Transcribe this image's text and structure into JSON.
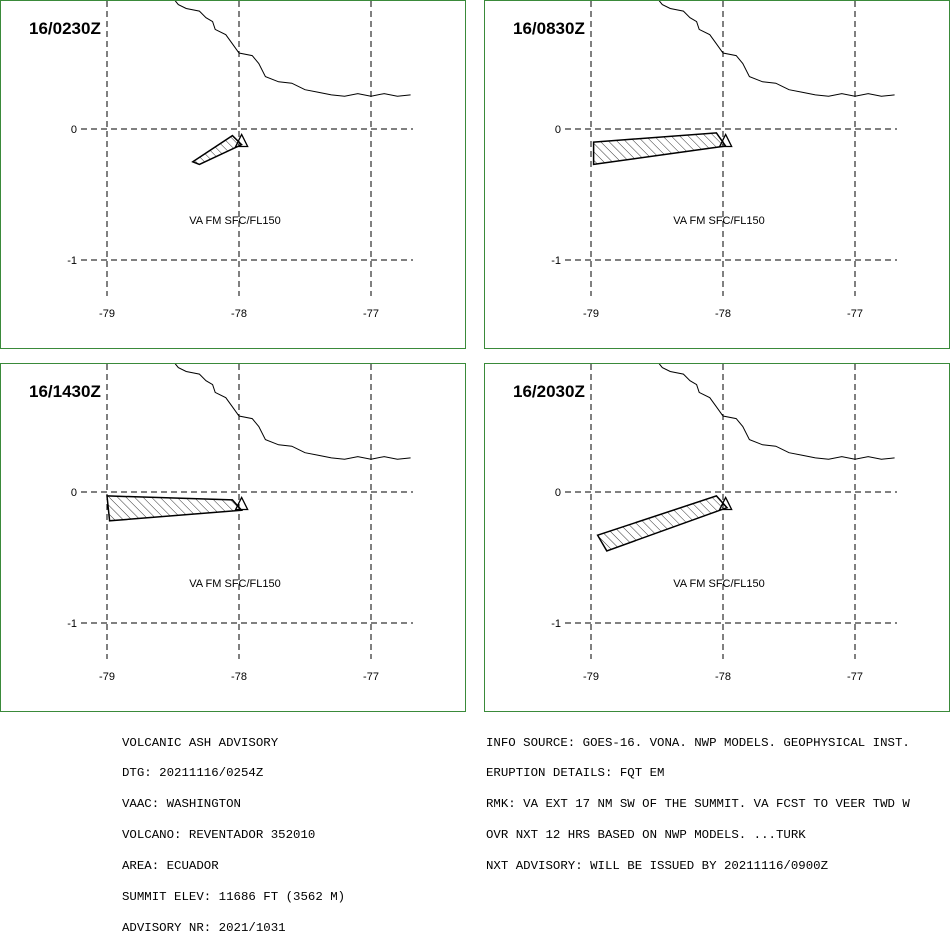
{
  "panels": [
    {
      "id": "p1",
      "time_label": "16/0230Z",
      "va_label": "VA FM SFC/FL150",
      "lon_labels": [
        "-79",
        "-78",
        "-77"
      ],
      "lat_labels": [
        "0",
        "-1"
      ],
      "ash_polygon": [
        [
          -78.35,
          -0.25
        ],
        [
          -78.05,
          -0.05
        ],
        [
          -77.98,
          -0.12
        ],
        [
          -78.3,
          -0.27
        ]
      ]
    },
    {
      "id": "p2",
      "time_label": "16/0830Z",
      "va_label": "VA FM SFC/FL150",
      "lon_labels": [
        "-79",
        "-78",
        "-77"
      ],
      "lat_labels": [
        "0",
        "-1"
      ],
      "ash_polygon": [
        [
          -78.98,
          -0.1
        ],
        [
          -78.05,
          -0.03
        ],
        [
          -77.98,
          -0.13
        ],
        [
          -78.98,
          -0.27
        ]
      ]
    },
    {
      "id": "p3",
      "time_label": "16/1430Z",
      "va_label": "VA FM SFC/FL150",
      "lon_labels": [
        "-79",
        "-78",
        "-77"
      ],
      "lat_labels": [
        "0",
        "-1"
      ],
      "ash_polygon": [
        [
          -79.0,
          -0.03
        ],
        [
          -78.05,
          -0.06
        ],
        [
          -77.98,
          -0.14
        ],
        [
          -78.98,
          -0.22
        ]
      ]
    },
    {
      "id": "p4",
      "time_label": "16/2030Z",
      "va_label": "VA FM SFC/FL150",
      "lon_labels": [
        "-79",
        "-78",
        "-77"
      ],
      "lat_labels": [
        "0",
        "-1"
      ],
      "ash_polygon": [
        [
          -78.95,
          -0.33
        ],
        [
          -78.05,
          -0.03
        ],
        [
          -77.97,
          -0.12
        ],
        [
          -78.88,
          -0.45
        ]
      ]
    }
  ],
  "map": {
    "vent": [
      -77.98,
      -0.08
    ],
    "coastline": [
      [
        -78.5,
        1.0
      ],
      [
        -78.46,
        0.95
      ],
      [
        -78.4,
        0.92
      ],
      [
        -78.3,
        0.9
      ],
      [
        -78.25,
        0.85
      ],
      [
        -78.2,
        0.82
      ],
      [
        -78.18,
        0.76
      ],
      [
        -78.1,
        0.72
      ],
      [
        -78.05,
        0.65
      ],
      [
        -78.0,
        0.58
      ],
      [
        -77.9,
        0.56
      ],
      [
        -77.85,
        0.5
      ],
      [
        -77.8,
        0.4
      ],
      [
        -77.7,
        0.36
      ],
      [
        -77.6,
        0.35
      ],
      [
        -77.5,
        0.3
      ],
      [
        -77.4,
        0.28
      ],
      [
        -77.3,
        0.26
      ],
      [
        -77.2,
        0.25
      ],
      [
        -77.1,
        0.27
      ],
      [
        -77.0,
        0.25
      ],
      [
        -76.9,
        0.27
      ],
      [
        -76.8,
        0.25
      ],
      [
        -76.7,
        0.26
      ]
    ]
  },
  "advisory_left": [
    "VOLCANIC ASH ADVISORY",
    "DTG: 20211116/0254Z",
    "VAAC: WASHINGTON",
    "VOLCANO: REVENTADOR 352010",
    "AREA: ECUADOR",
    "SUMMIT ELEV: 11686 FT (3562 M)",
    "ADVISORY NR: 2021/1031"
  ],
  "advisory_right": [
    "INFO SOURCE: GOES-16. VONA. NWP MODELS. GEOPHYSICAL INST.",
    "ERUPTION DETAILS: FQT EM",
    "RMK: VA EXT 17 NM SW OF THE SUMMIT. VA FCST TO VEER TWD W",
    "OVR NXT 12 HRS BASED ON NWP MODELS. ...TURK",
    "NXT ADVISORY: WILL BE ISSUED BY 20211116/0900Z"
  ],
  "colors": {
    "border": "#3a8a3a",
    "line": "#000000"
  }
}
